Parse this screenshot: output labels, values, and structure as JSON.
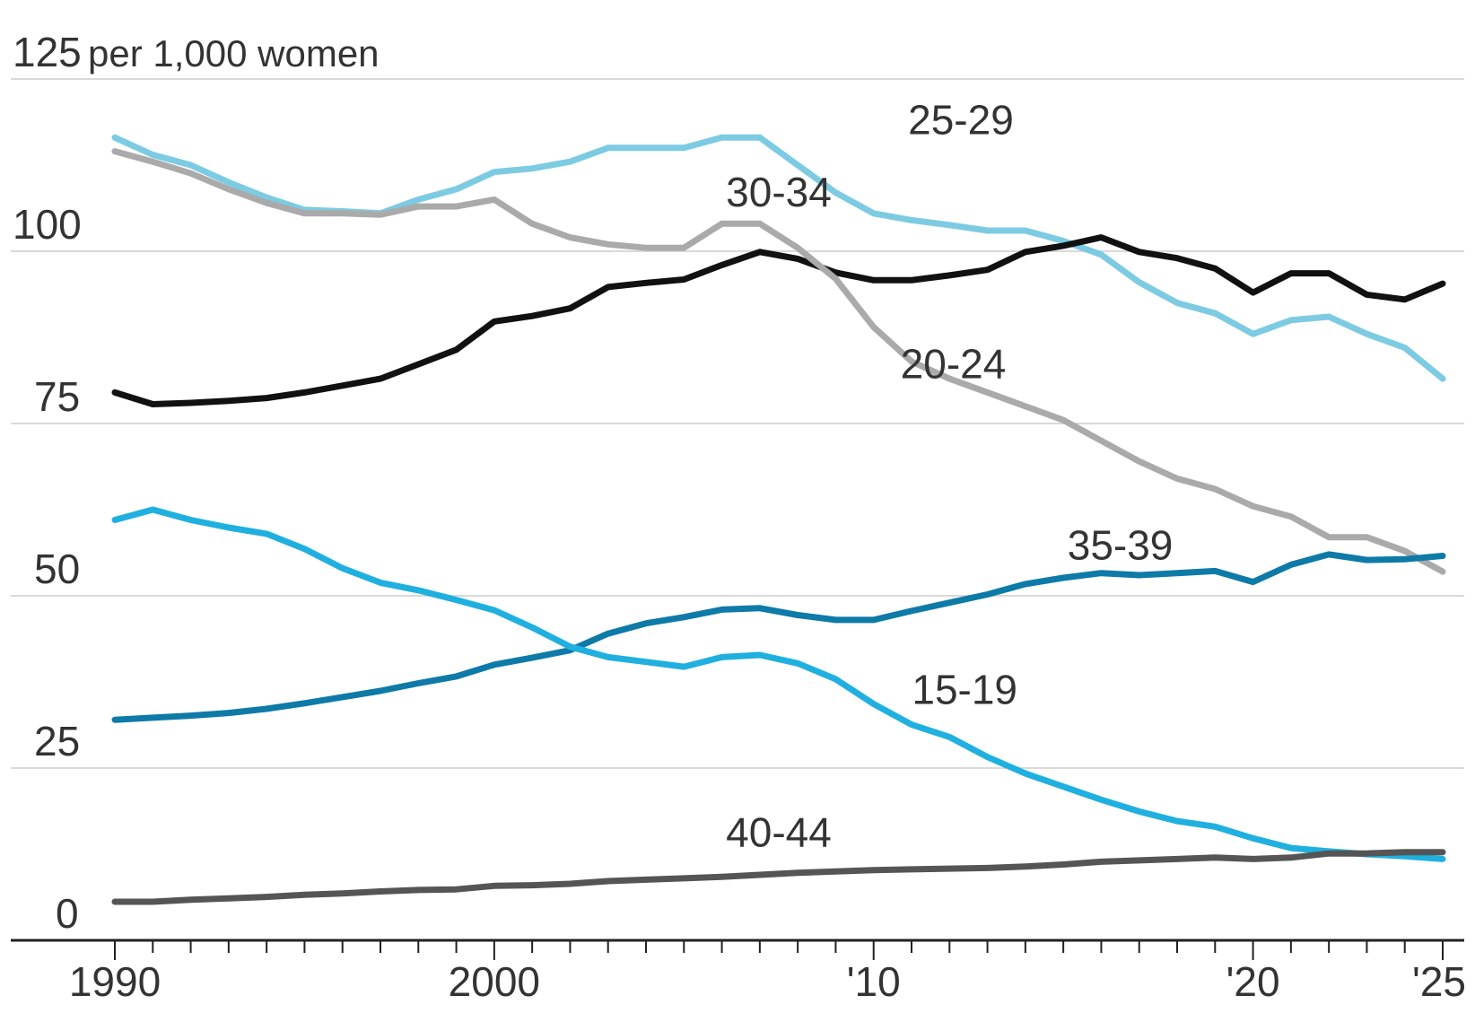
{
  "chart_data": {
    "type": "line",
    "ylabel": "per 1,000 women",
    "ylim": [
      0,
      125
    ],
    "y_ticks": [
      0,
      25,
      50,
      75,
      100,
      125
    ],
    "xlim": [
      1990,
      2025
    ],
    "x_tick_labels": [
      {
        "value": 1990,
        "label": "1990"
      },
      {
        "value": 2000,
        "label": "2000"
      },
      {
        "value": 2010,
        "label": "'10"
      },
      {
        "value": 2020,
        "label": "'20"
      },
      {
        "value": 2025,
        "label": "'25"
      }
    ],
    "grid": true,
    "x": [
      1990,
      1991,
      1992,
      1993,
      1994,
      1995,
      1996,
      1997,
      1998,
      1999,
      2000,
      2001,
      2002,
      2003,
      2004,
      2005,
      2006,
      2007,
      2008,
      2009,
      2010,
      2011,
      2012,
      2013,
      2014,
      2015,
      2016,
      2017,
      2018,
      2019,
      2020,
      2021,
      2022,
      2023,
      2024,
      2025
    ],
    "series": [
      {
        "name": "25-29",
        "color": "#7ccbe3",
        "label_at": [
          2012.3,
          117
        ],
        "values": [
          116.5,
          114,
          112.5,
          110,
          107.8,
          106,
          105.8,
          105.5,
          107.5,
          109,
          111.5,
          112,
          113,
          115,
          115,
          115,
          116.5,
          116.5,
          112.5,
          108.5,
          105.5,
          104.5,
          103.8,
          103,
          103,
          101.5,
          99.5,
          95.5,
          92.5,
          91,
          88,
          90,
          90.5,
          88,
          86,
          81.5
        ]
      },
      {
        "name": "30-34",
        "color": "#111111",
        "label_at": [
          2007.5,
          106.5
        ],
        "values": [
          79.5,
          77.8,
          78,
          78.3,
          78.7,
          79.5,
          80.5,
          81.5,
          83.6,
          85.7,
          89.8,
          90.6,
          91.7,
          94.8,
          95.4,
          95.9,
          98,
          99.9,
          98.9,
          96.9,
          95.8,
          95.8,
          96.5,
          97.3,
          99.9,
          100.8,
          102,
          99.9,
          99,
          97.5,
          94,
          96.8,
          96.8,
          93.7,
          93,
          95.3
        ]
      },
      {
        "name": "20-24",
        "color": "#aaaaaa",
        "label_at": [
          2012.1,
          81.6
        ],
        "values": [
          114.5,
          113,
          111.3,
          109,
          107,
          105.5,
          105.5,
          105.3,
          106.5,
          106.5,
          107.5,
          104,
          102,
          101,
          100.5,
          100.5,
          104,
          104,
          100.5,
          96,
          89,
          84,
          81.5,
          79.5,
          77.5,
          75.5,
          72.5,
          69.5,
          67,
          65.5,
          63,
          61.5,
          58.5,
          58.5,
          56.5,
          53.5
        ]
      },
      {
        "name": "35-39",
        "color": "#0e7aa8",
        "label_at": [
          2016.5,
          55.3
        ],
        "values": [
          32,
          32.3,
          32.6,
          33,
          33.6,
          34.4,
          35.3,
          36.2,
          37.3,
          38.3,
          40,
          41,
          42.1,
          44.5,
          46,
          46.9,
          48,
          48.2,
          47.2,
          46.5,
          46.5,
          47.8,
          49,
          50.2,
          51.7,
          52.6,
          53.3,
          53,
          53.3,
          53.6,
          52,
          54.5,
          56,
          55.2,
          55.3,
          55.8
        ]
      },
      {
        "name": "15-19",
        "color": "#1fb0e0",
        "label_at": [
          2012.4,
          34.3
        ],
        "values": [
          61,
          62.5,
          61,
          59.9,
          59,
          56.8,
          54,
          51.9,
          50.8,
          49.4,
          47.9,
          45.4,
          42.6,
          41.1,
          40.4,
          39.7,
          41.1,
          41.4,
          40.2,
          37.9,
          34.3,
          31.3,
          29.5,
          26.6,
          24.2,
          22.3,
          20.4,
          18.7,
          17.3,
          16.5,
          14.8,
          13.4,
          12.9,
          12.5,
          12.2,
          11.8
        ]
      },
      {
        "name": "40-44",
        "color": "#555555",
        "label_at": [
          2007.5,
          13.6
        ],
        "values": [
          5.6,
          5.6,
          5.9,
          6.1,
          6.3,
          6.6,
          6.8,
          7.1,
          7.3,
          7.4,
          7.9,
          8,
          8.2,
          8.6,
          8.8,
          9,
          9.2,
          9.5,
          9.8,
          10,
          10.2,
          10.3,
          10.4,
          10.5,
          10.7,
          11,
          11.4,
          11.6,
          11.8,
          12,
          11.8,
          12,
          12.6,
          12.6,
          12.8,
          12.8
        ]
      }
    ]
  }
}
